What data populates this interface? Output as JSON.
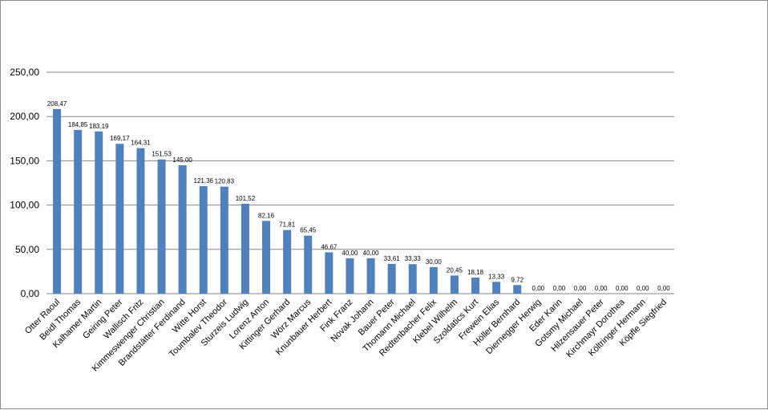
{
  "chart_data": {
    "type": "bar",
    "title": "",
    "xlabel": "",
    "ylabel": "",
    "ylim": [
      0,
      250
    ],
    "yticks": [
      "0,00",
      "50,00",
      "100,00",
      "150,00",
      "200,00",
      "250,00"
    ],
    "grid": "horizontal",
    "legend": "none",
    "bar_color": "#4F81BD",
    "categories": [
      "Otter Raoul",
      "Beidl Thomas",
      "Kalhamer Martin",
      "Geiring Peter",
      "Wallisch Fritz",
      "Kimmeswenger Christian",
      "Brandstätter Ferdinand",
      "Witte Horst",
      "Toumbalev Theodor",
      "Sturzeis Ludwig",
      "Lorenz Anton",
      "Kittinger Gerhard",
      "Wörz Marcus",
      "Knunbauer Herbert",
      "Fink Franz",
      "Novak Johann",
      "Bauer Peter",
      "Thomann Michael",
      "Redtenbacher Felix",
      "Klebel Wilhelm",
      "Szoldatics Kurt",
      "Frewein Elias",
      "Höller Bernhard",
      "Diernegger Herwig",
      "Eder Karin",
      "Gotsmy Michael",
      "Hilzensauer Peter",
      "Kirchmayr Dorothea",
      "Költringer Hermann",
      "Köpfle Siegfried"
    ],
    "values": [
      208.47,
      184.85,
      183.19,
      169.17,
      164.31,
      151.53,
      145.0,
      121.36,
      120.83,
      101.52,
      82.16,
      71.81,
      65.45,
      46.67,
      40.0,
      40.0,
      33.61,
      33.33,
      30.0,
      20.45,
      18.18,
      13.33,
      9.72,
      0,
      0,
      0,
      0,
      0,
      0,
      0
    ],
    "value_labels": [
      "208,47",
      "184,85",
      "183,19",
      "169,17",
      "164,31",
      "151,53",
      "145,00",
      "121,36",
      "120,83",
      "101,52",
      "82,16",
      "71,81",
      "65,45",
      "46,67",
      "40,00",
      "40,00",
      "33,61",
      "33,33",
      "30,00",
      "20,45",
      "18,18",
      "13,33",
      "9,72",
      "0,00",
      "0,00",
      "0,00",
      "0,00",
      "0,00",
      "0,00",
      "0,00"
    ]
  }
}
